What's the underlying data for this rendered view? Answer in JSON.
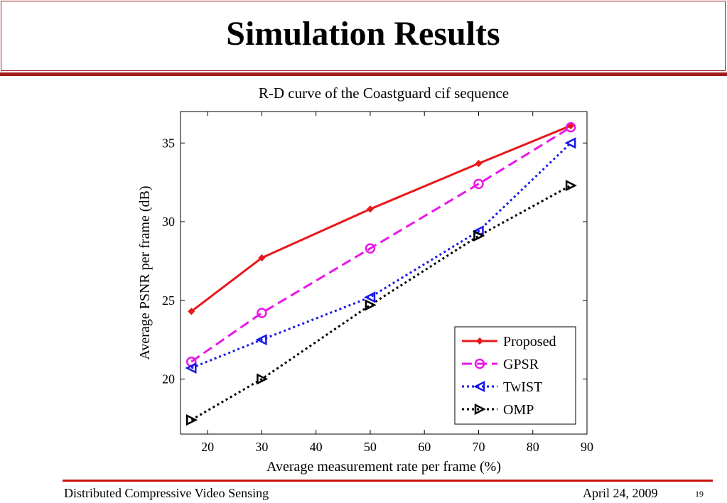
{
  "slide": {
    "title": "Simulation Results",
    "footer_left": "Distributed Compressive Video Sensing",
    "footer_date": "April 24, 2009",
    "page_number": "19",
    "accent_color": "#a01a1a"
  },
  "chart_data": {
    "type": "line",
    "title": "R-D curve of the Coastguard cif sequence",
    "xlabel": "Average measurement rate per frame (%)",
    "ylabel": "Average PSNR per frame (dB)",
    "xlim": [
      15,
      90
    ],
    "ylim": [
      16.5,
      37
    ],
    "xticks": [
      20,
      30,
      40,
      50,
      60,
      70,
      80,
      90
    ],
    "yticks": [
      20,
      25,
      30,
      35
    ],
    "grid": false,
    "legend_position": "bottom-right",
    "series": [
      {
        "name": "Proposed",
        "color": "#e8181c",
        "dash": "solid",
        "marker": "star",
        "x": [
          17,
          30,
          50,
          70,
          87
        ],
        "y": [
          24.3,
          27.7,
          30.8,
          33.7,
          36.1
        ]
      },
      {
        "name": "GPSR",
        "color": "#e818e8",
        "dash": "dashed",
        "marker": "circle",
        "x": [
          17,
          30,
          50,
          70,
          87
        ],
        "y": [
          21.1,
          24.2,
          28.3,
          32.4,
          36.0
        ]
      },
      {
        "name": "TwIST",
        "color": "#1818e8",
        "dash": "dotted",
        "marker": "triangle-left",
        "x": [
          17,
          30,
          50,
          70,
          87
        ],
        "y": [
          20.7,
          22.5,
          25.2,
          29.4,
          35.0
        ]
      },
      {
        "name": "OMP",
        "color": "#000000",
        "dash": "dotted",
        "marker": "triangle-right",
        "x": [
          17,
          30,
          50,
          70,
          87
        ],
        "y": [
          17.4,
          20.0,
          24.7,
          29.1,
          32.3
        ]
      }
    ]
  }
}
